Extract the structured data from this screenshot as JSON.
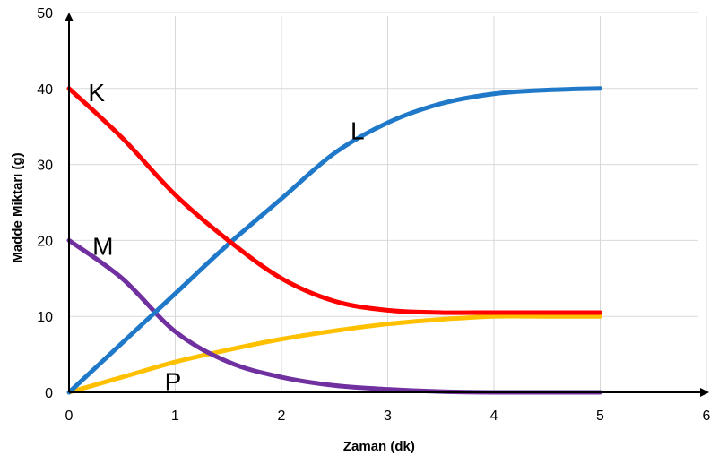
{
  "chart_data": {
    "type": "line",
    "title": "",
    "xlabel": "Zaman (dk)",
    "ylabel": "Madde Miktarı (g)",
    "xlim": [
      0,
      6
    ],
    "ylim": [
      0,
      50
    ],
    "xticks": [
      "0",
      "1",
      "2",
      "3",
      "4",
      "5",
      "6"
    ],
    "yticks": [
      "0",
      "10",
      "20",
      "30",
      "40",
      "50"
    ],
    "grid": true,
    "series": [
      {
        "name": "K",
        "color": "#ff0000",
        "x": [
          0,
          0.5,
          1,
          1.5,
          2,
          2.5,
          3,
          3.5,
          4,
          4.5,
          5
        ],
        "y": [
          40,
          33.5,
          26,
          20,
          15,
          12,
          10.8,
          10.5,
          10.5,
          10.5,
          10.5
        ]
      },
      {
        "name": "L",
        "color": "#1f78c8",
        "x": [
          0,
          0.5,
          1,
          1.5,
          2,
          2.5,
          3,
          3.5,
          4,
          4.5,
          5
        ],
        "y": [
          0,
          6.5,
          13,
          19.5,
          25.5,
          31.5,
          35.5,
          38,
          39.3,
          39.8,
          40
        ]
      },
      {
        "name": "M",
        "color": "#7030a0",
        "x": [
          0,
          0.5,
          1,
          1.5,
          2,
          2.5,
          3,
          3.5,
          4,
          4.5,
          5
        ],
        "y": [
          20,
          15,
          8,
          4,
          2,
          0.9,
          0.4,
          0.1,
          0,
          0,
          0
        ]
      },
      {
        "name": "P",
        "color": "#ffc000",
        "x": [
          0,
          0.5,
          1,
          1.5,
          2,
          2.5,
          3,
          3.5,
          4,
          4.5,
          5
        ],
        "y": [
          0,
          2,
          4,
          5.6,
          7,
          8.1,
          9,
          9.6,
          10,
          10,
          10
        ]
      }
    ],
    "annotations": [
      {
        "text": "K",
        "series": "K",
        "x": 0.18,
        "y": 39.5
      },
      {
        "text": "L",
        "series": "L",
        "x": 2.65,
        "y": 34.5
      },
      {
        "text": "M",
        "series": "M",
        "x": 0.22,
        "y": 19.3
      },
      {
        "text": "P",
        "series": "P",
        "x": 0.9,
        "y": 1.5
      }
    ]
  }
}
